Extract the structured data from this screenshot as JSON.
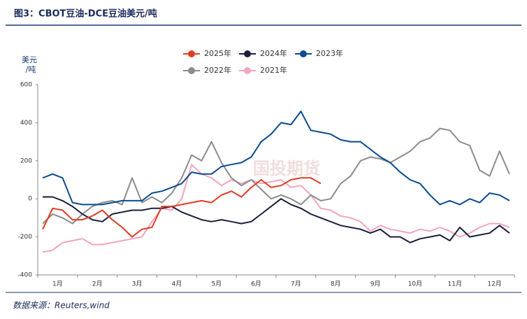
{
  "chart_data": {
    "type": "line",
    "title": "图3：CBOT豆油-DCE豆油美元/吨",
    "y_label_lines": [
      "美元",
      "/吨"
    ],
    "watermark": "国投期货",
    "source": "数据来源：Reuters,wind",
    "categories": [
      null,
      "1月",
      null,
      null,
      null,
      "2月",
      null,
      null,
      null,
      "3月",
      null,
      null,
      null,
      "4月",
      null,
      null,
      null,
      "5月",
      null,
      null,
      null,
      "6月",
      null,
      null,
      null,
      "7月",
      null,
      null,
      null,
      "8月",
      null,
      null,
      null,
      "9月",
      null,
      null,
      null,
      "10月",
      null,
      null,
      null,
      "11月",
      null,
      null,
      null,
      "12月",
      null,
      null
    ],
    "ylim": [
      -400,
      600
    ],
    "yticks": [
      -400,
      -200,
      0,
      200,
      400,
      600
    ],
    "series": [
      {
        "name": "2025年",
        "color": "#e03c24",
        "values": [
          -160,
          -50,
          -60,
          -110,
          -110,
          -90,
          -60,
          -110,
          -150,
          -200,
          -160,
          -150,
          -40,
          -40,
          -30,
          -20,
          -10,
          -20,
          20,
          40,
          10,
          60,
          100,
          60,
          70,
          100,
          110,
          110,
          80,
          null,
          null,
          null,
          null,
          null,
          null,
          null,
          null,
          null,
          null,
          null,
          null,
          null,
          null,
          null,
          null,
          null,
          null,
          null
        ]
      },
      {
        "name": "2024年",
        "color": "#1a1f3d",
        "values": [
          10,
          10,
          -10,
          -40,
          -80,
          -110,
          -120,
          -80,
          -70,
          -60,
          -60,
          -50,
          -50,
          -40,
          -70,
          -90,
          -110,
          -120,
          -110,
          -120,
          -130,
          -120,
          -80,
          -40,
          0,
          -30,
          -50,
          -80,
          -100,
          -120,
          -140,
          -150,
          -160,
          -180,
          -160,
          -200,
          -200,
          -230,
          -210,
          -200,
          -190,
          -220,
          -150,
          -200,
          -190,
          -180,
          -140,
          -180
        ]
      },
      {
        "name": "2023年",
        "color": "#0d4a8f",
        "values": [
          110,
          130,
          110,
          -20,
          -30,
          -30,
          -30,
          -20,
          -10,
          -10,
          -10,
          30,
          40,
          60,
          80,
          140,
          130,
          130,
          170,
          180,
          190,
          220,
          300,
          340,
          400,
          390,
          460,
          360,
          350,
          340,
          310,
          300,
          300,
          260,
          220,
          190,
          140,
          100,
          80,
          20,
          -30,
          -10,
          -30,
          0,
          -20,
          30,
          20,
          -10
        ]
      },
      {
        "name": "2022年",
        "color": "#8c8c8c",
        "values": [
          -130,
          -80,
          -100,
          -130,
          -80,
          -40,
          -20,
          -10,
          -30,
          110,
          -20,
          10,
          -20,
          30,
          110,
          230,
          200,
          300,
          190,
          110,
          70,
          100,
          50,
          0,
          20,
          0,
          -30,
          20,
          -10,
          0,
          80,
          120,
          200,
          220,
          210,
          190,
          220,
          250,
          300,
          320,
          370,
          360,
          300,
          280,
          150,
          120,
          250,
          130
        ]
      },
      {
        "name": "2021年",
        "color": "#f2a5bd",
        "values": [
          -280,
          -270,
          -230,
          -220,
          -210,
          -240,
          -240,
          -230,
          -220,
          -210,
          -200,
          -120,
          -50,
          -60,
          0,
          180,
          130,
          110,
          70,
          100,
          80,
          100,
          80,
          90,
          100,
          60,
          70,
          20,
          -50,
          -60,
          -90,
          -100,
          -120,
          -170,
          -140,
          -160,
          -170,
          -180,
          -160,
          -170,
          -150,
          -170,
          -200,
          -180,
          -150,
          -130,
          -130,
          -150
        ]
      }
    ]
  }
}
